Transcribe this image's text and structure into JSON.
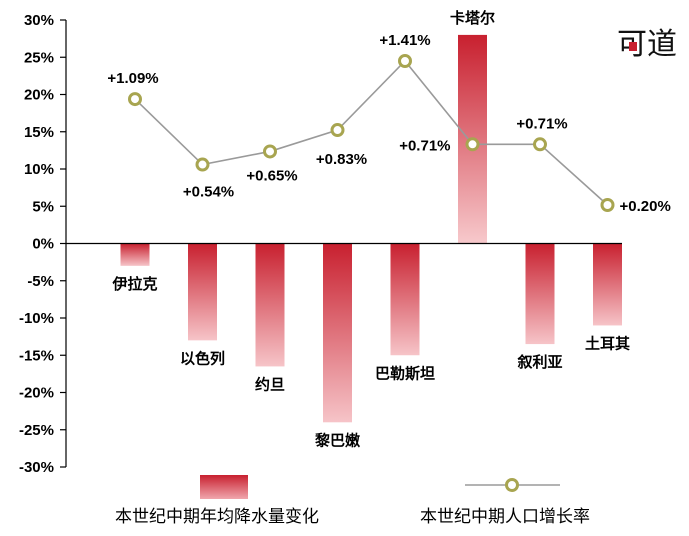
{
  "chart_data": {
    "type": "bar+line",
    "categories": [
      "伊拉克",
      "以色列",
      "约旦",
      "黎巴嫩",
      "巴勒斯坦",
      "卡塔尔",
      "叙利亚",
      "土耳其"
    ],
    "series": [
      {
        "name": "本世纪中期年均降水量变化",
        "type": "bar",
        "values": [
          -3,
          -13,
          -16.5,
          -24,
          -15,
          28,
          -13.5,
          -11
        ]
      },
      {
        "name": "本世纪中期人口增长率",
        "type": "line",
        "values": [
          1.09,
          0.54,
          0.65,
          0.83,
          1.41,
          0.71,
          0.71,
          0.2
        ],
        "labels": [
          "+1.09%",
          "+0.54%",
          "+0.65%",
          "+0.83%",
          "+1.41%",
          "+0.71%",
          "+0.71%",
          "+0.20%"
        ]
      }
    ],
    "yticks": [
      "30%",
      "25%",
      "20%",
      "15%",
      "10%",
      "5%",
      "0%",
      "-5%",
      "-10%",
      "-15%",
      "-20%",
      "-25%",
      "-30%"
    ],
    "ylim": [
      -30,
      30
    ],
    "line_scale_note": "",
    "grid": false,
    "legend_position": "bottom",
    "colors": {
      "bar_dark": "#c8202f",
      "bar_light": "#f6c4c8",
      "line": "#9a9a9a",
      "marker": "#a8a550"
    }
  },
  "logo": {
    "text": "可道",
    "seal": ""
  }
}
